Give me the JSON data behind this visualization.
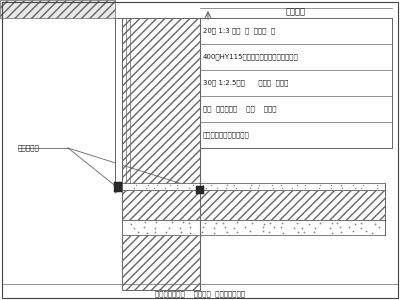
{
  "line_color": "#666666",
  "title_top": "岩石齐平",
  "annotations": [
    "20厚 1:3 水泥  砂  浆保护  层",
    "400厚HY115多层高分子复合防水卷材一道",
    "30厚 1:2.5防水      水泥砂  浆找平",
    "防水  钢筋混凝土    侧墙    详结施",
    "室内抹灰层详建施图说明"
  ],
  "left_label": "滴沥青油管",
  "bottom_label": "地下室外墙防水    构造大样  （有岩石部分）",
  "rock_hatch": "////",
  "wall_hatch": "////",
  "floor_hatch": "////"
}
